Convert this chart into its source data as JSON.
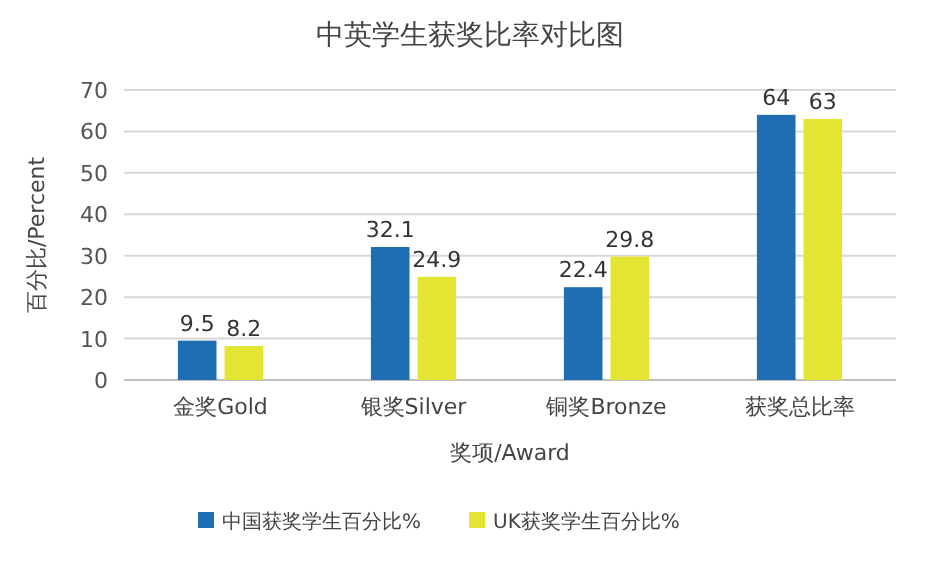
{
  "chart_data": {
    "type": "bar",
    "title": "中英学生获奖比率对比图",
    "xlabel": "奖项/Award",
    "ylabel": "百分比/Percent",
    "categories": [
      "金奖Gold",
      "银奖Silver",
      "铜奖Bronze",
      "获奖总比率"
    ],
    "series": [
      {
        "name": "中国获奖学生百分比%",
        "color": "#1f6db3",
        "values": [
          9.5,
          32.1,
          22.4,
          64
        ]
      },
      {
        "name": "UK获奖学生百分比%",
        "color": "#e4e433",
        "values": [
          8.2,
          24.9,
          29.8,
          63
        ]
      }
    ],
    "ylim": [
      0,
      70
    ],
    "yticks": [
      0,
      10,
      20,
      30,
      40,
      50,
      60,
      70
    ],
    "grid": "y",
    "data_labels": true,
    "legend": "bottom"
  }
}
